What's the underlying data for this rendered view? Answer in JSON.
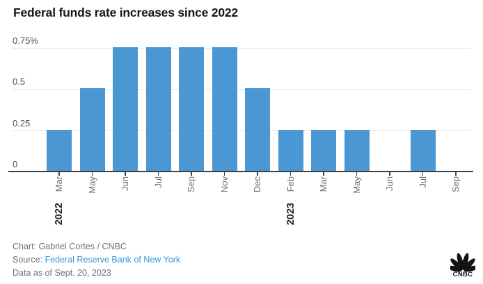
{
  "title": "Federal funds rate increases since 2022",
  "chart_data": {
    "type": "bar",
    "title": "Federal funds rate increases since 2022",
    "xlabel": "",
    "ylabel": "",
    "categories": [
      "Mar",
      "May",
      "Jun",
      "Jul",
      "Sep",
      "Nov",
      "Dec",
      "Feb",
      "Mar",
      "May",
      "Jun",
      "Jul",
      "Sep"
    ],
    "values": [
      0.25,
      0.5,
      0.75,
      0.75,
      0.75,
      0.75,
      0.5,
      0.25,
      0.25,
      0.25,
      0,
      0.25,
      0
    ],
    "year_groups": [
      {
        "label": "2022",
        "index": 0
      },
      {
        "label": "2023",
        "index": 7
      }
    ],
    "y_ticks": [
      {
        "value": 0,
        "label": "0"
      },
      {
        "value": 0.25,
        "label": "0.25"
      },
      {
        "value": 0.5,
        "label": "0.5"
      },
      {
        "value": 0.75,
        "label": "0.75%"
      }
    ],
    "ylim": [
      0,
      0.75
    ],
    "grid": true,
    "legend": "none",
    "bar_color": "#4a97d3"
  },
  "footer": {
    "credit": "Chart: Gabriel Cortes / CNBC",
    "source_prefix": "Source: ",
    "source_link": "Federal Reserve Bank of New York",
    "data_note": "Data as of Sept. 20, 2023"
  },
  "logo": {
    "text": "CNBC",
    "icon": "cnbc-peacock-icon"
  },
  "colors": {
    "bar": "#4a97d3",
    "link": "#3b96d8",
    "title": "#16161e",
    "axis": "#3f3f46",
    "grid": "#e3e3e3",
    "y_label": "#4f4f59",
    "month_label": "#6e6e77",
    "year_label": "#26262c",
    "footer": "#6e6e77",
    "logo": "#141414"
  }
}
